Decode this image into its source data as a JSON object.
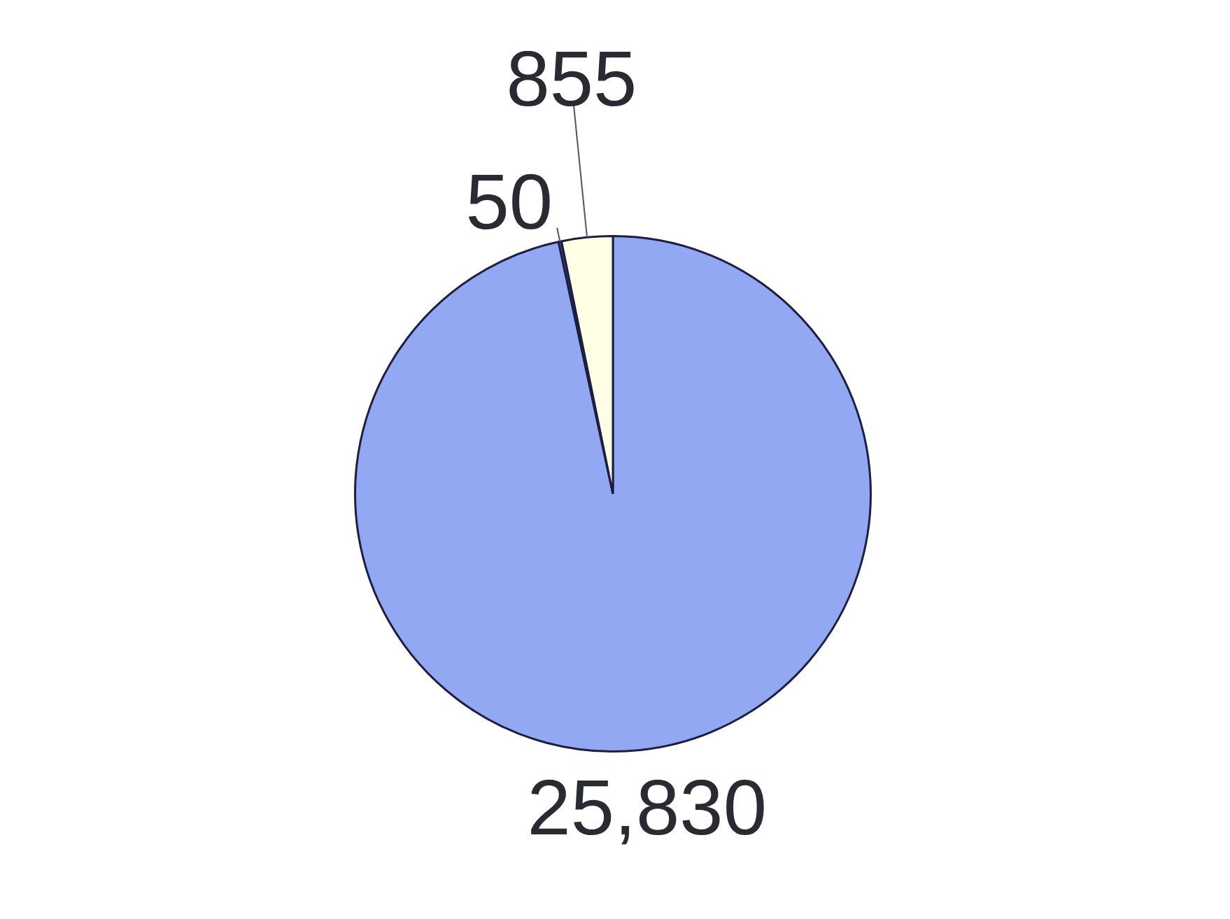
{
  "chart_data": {
    "type": "pie",
    "categories": [
      null,
      null,
      null
    ],
    "values": [
      25830,
      50,
      855
    ],
    "colors": [
      "#92a8f2",
      "#3b4a9e",
      "#ffffe6"
    ],
    "value_labels": [
      "25,830",
      "50",
      "855"
    ],
    "legend": false
  }
}
